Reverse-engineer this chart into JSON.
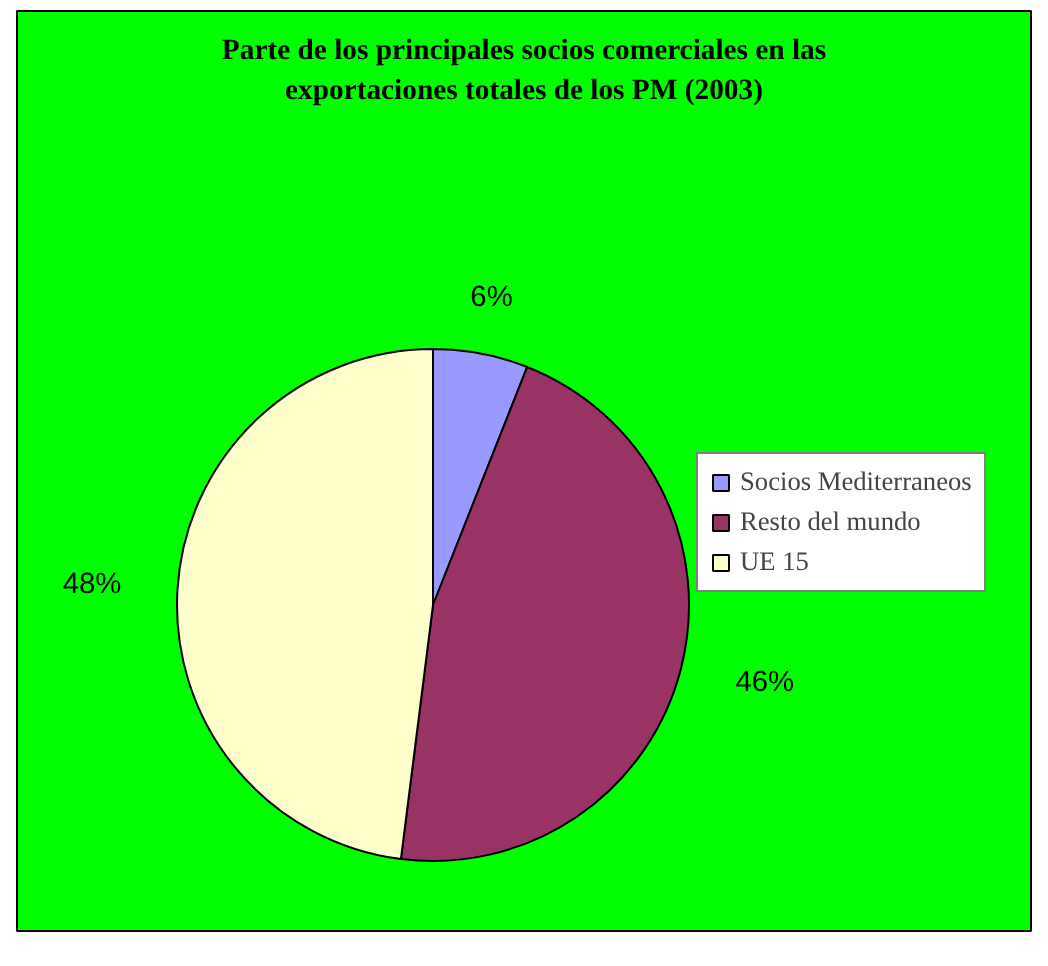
{
  "chart_data": {
    "type": "pie",
    "title": "Parte de los principales socios comerciales en las exportaciones totales de los PM (2003)",
    "categories": [
      "Socios Mediterraneos",
      "Resto del mundo",
      "UE 15"
    ],
    "values": [
      6,
      46,
      48
    ],
    "colors": [
      "#9999ff",
      "#993366",
      "#ffffcc"
    ],
    "value_labels": [
      "6%",
      "46%",
      "48%"
    ],
    "legend": "right"
  }
}
